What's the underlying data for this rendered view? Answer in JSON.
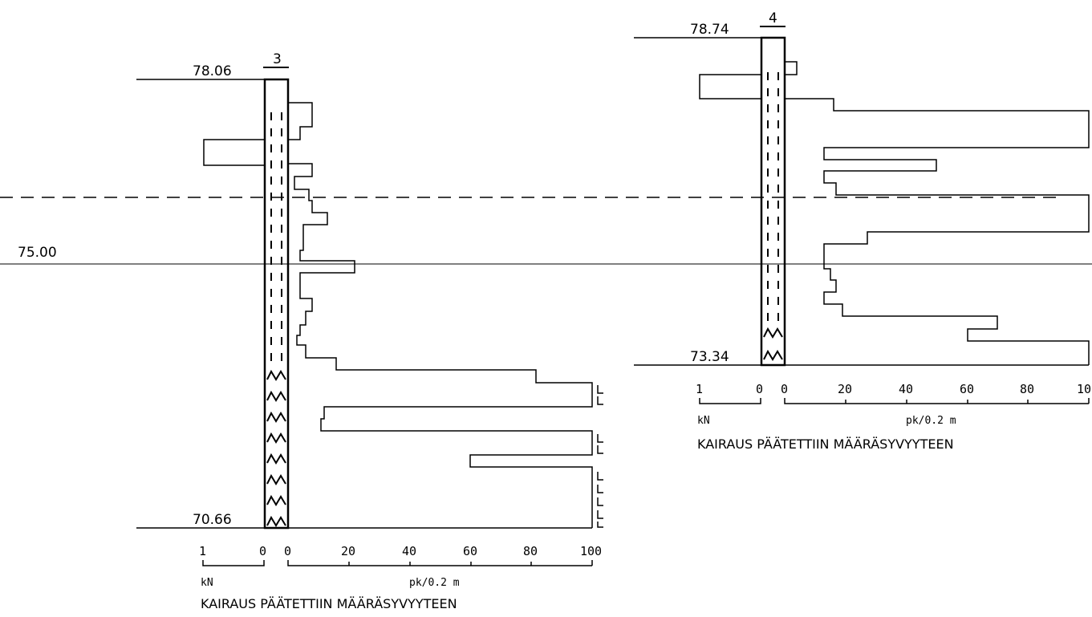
{
  "reference_lines": {
    "elevation_label": "75.00"
  },
  "boreholes": [
    {
      "id": "3",
      "top_elevation": "78.06",
      "bottom_elevation": "70.66",
      "pk_axis_ticks": [
        "0",
        "20",
        "40",
        "60",
        "80",
        "100"
      ],
      "kn_axis_ticks": [
        "1",
        "0"
      ],
      "kn_unit": "kN",
      "pk_unit": "pk/0.2 m",
      "note": "KAIRAUS PÄÄTETTIIN MÄÄRÄSYVYYTEEN",
      "profile_pk": [
        8,
        4,
        8,
        3,
        -20,
        8,
        3,
        8,
        13,
        4,
        22,
        4,
        8,
        5,
        3,
        16,
        82,
        100,
        12,
        11,
        100,
        60,
        100
      ],
      "limit_markers": 8
    },
    {
      "id": "4",
      "top_elevation": "78.74",
      "bottom_elevation": "73.34",
      "pk_axis_ticks": [
        "0",
        "20",
        "40",
        "60",
        "80",
        "10"
      ],
      "kn_axis_ticks": [
        "1",
        "0"
      ],
      "kn_unit": "kN",
      "pk_unit": "pk/0.2 m",
      "note": "KAIRAUS PÄÄTETTIIN MÄÄRÄSYVYYTEEN",
      "profile_pk": [
        4,
        -28,
        16,
        100,
        12,
        50,
        12,
        17,
        100,
        27,
        13,
        16,
        13,
        18,
        70,
        60,
        100
      ]
    }
  ]
}
